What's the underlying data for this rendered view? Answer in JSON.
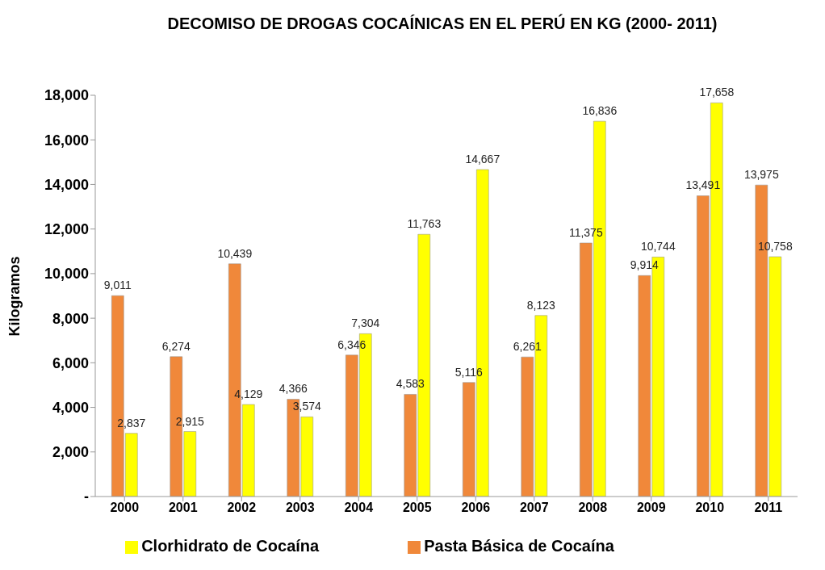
{
  "chart_data": {
    "type": "bar",
    "title": "DECOMISO DE DROGAS COCAÍNICAS EN EL PERÚ EN KG (2000- 2011)",
    "ylabel": "Kilogramos",
    "categories": [
      "2000",
      "2001",
      "2002",
      "2003",
      "2004",
      "2005",
      "2006",
      "2007",
      "2008",
      "2009",
      "2010",
      "2011"
    ],
    "series": [
      {
        "name": "Pasta Básica de Cocaína",
        "color": "#f0883a",
        "values": [
          9011,
          6274,
          10439,
          4366,
          6346,
          4583,
          5116,
          6261,
          11375,
          9914,
          13491,
          13975
        ],
        "value_labels": [
          "9,011",
          "6,274",
          "10,439",
          "4,366",
          "6,346",
          "4,583",
          "5,116",
          "6,261",
          "11,375",
          "9,914",
          "13,491",
          "13,975"
        ]
      },
      {
        "name": "Clorhidrato de Cocaína",
        "color": "#ffff00",
        "values": [
          2837,
          2915,
          4129,
          3574,
          7304,
          11763,
          14667,
          8123,
          16836,
          10744,
          17658,
          10758
        ],
        "value_labels": [
          "2,837",
          "2,915",
          "4,129",
          "3,574",
          "7,304",
          "11,763",
          "14,667",
          "8,123",
          "16,836",
          "10,744",
          "17,658",
          "10,758"
        ]
      }
    ],
    "ylim": [
      0,
      18000
    ],
    "yticks": [
      {
        "value": 0,
        "label": "-"
      },
      {
        "value": 2000,
        "label": "2,000"
      },
      {
        "value": 4000,
        "label": "4,000"
      },
      {
        "value": 6000,
        "label": "6,000"
      },
      {
        "value": 8000,
        "label": "8,000"
      },
      {
        "value": 10000,
        "label": "10,000"
      },
      {
        "value": 12000,
        "label": "12,000"
      },
      {
        "value": 14000,
        "label": "14,000"
      },
      {
        "value": 16000,
        "label": "16,000"
      },
      {
        "value": 18000,
        "label": "18,000"
      }
    ],
    "grid": false,
    "legend": "bottom"
  }
}
